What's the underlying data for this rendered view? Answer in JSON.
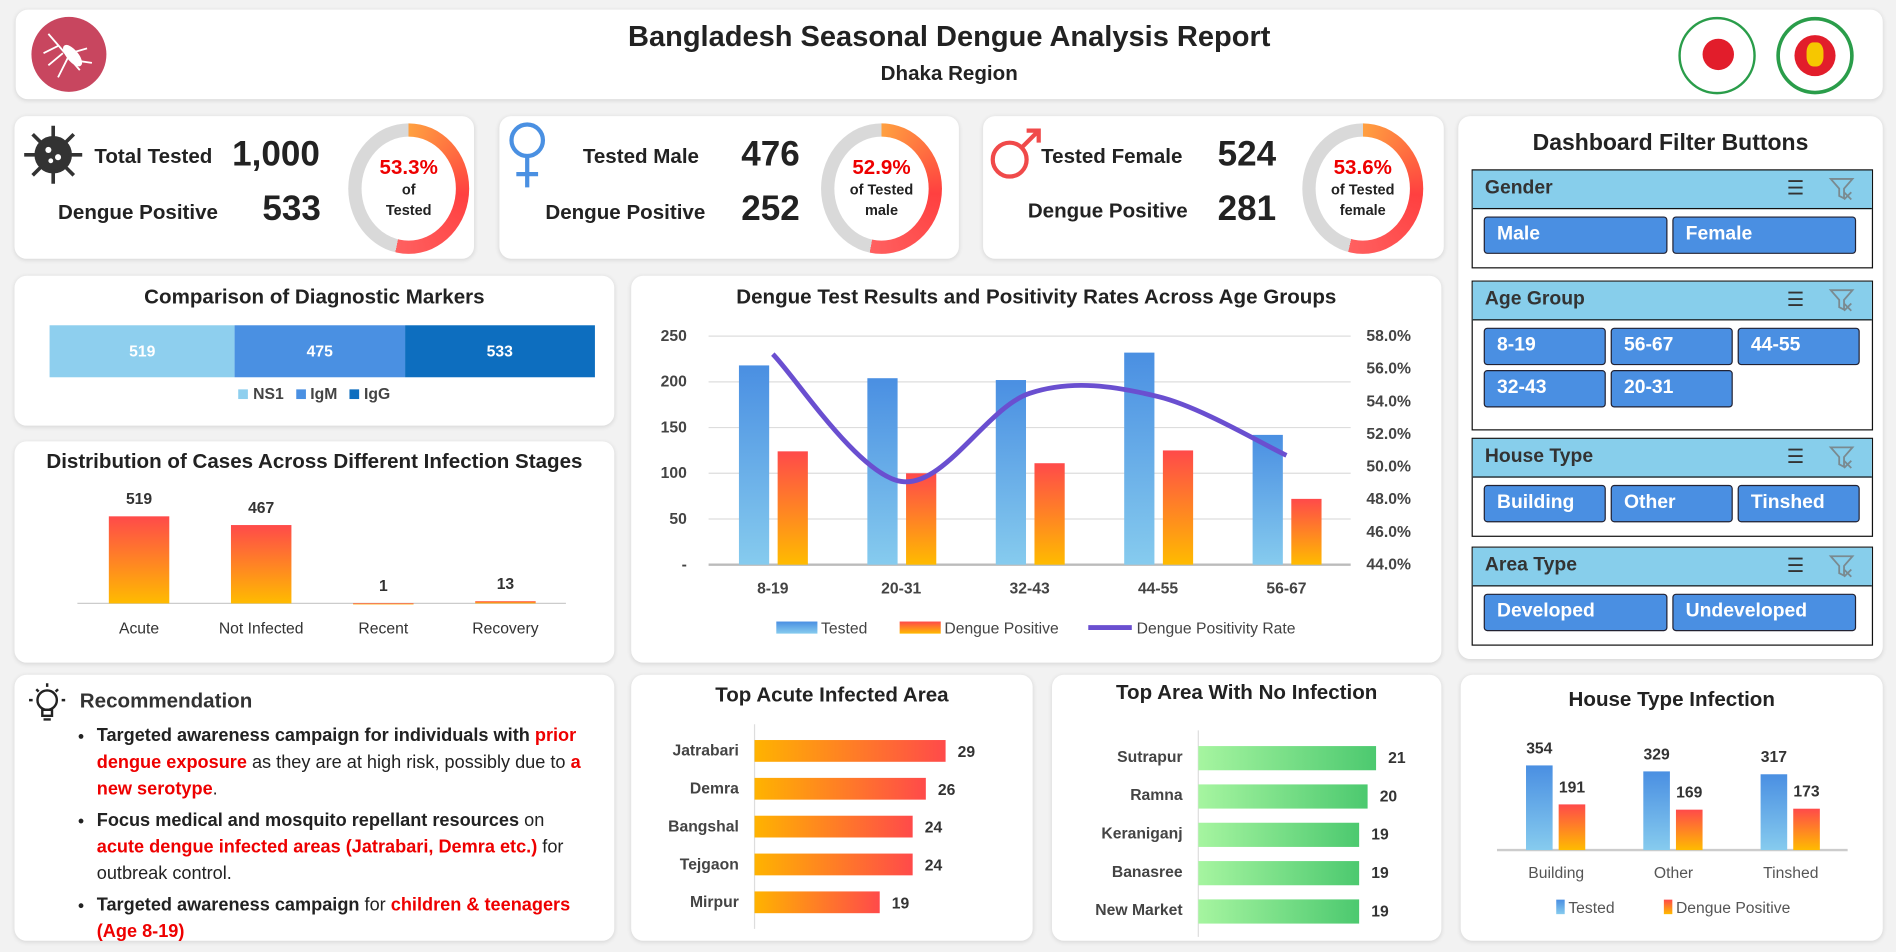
{
  "header": {
    "title": "Bangladesh Seasonal Dengue Analysis Report",
    "subtitle": "Dhaka Region",
    "logo_icon": "mosquito-icon",
    "emblems": [
      "dghs-emblem",
      "government-seal"
    ]
  },
  "kpis": [
    {
      "icon": "virus-icon",
      "label1": "Total Tested",
      "value1": "1,000",
      "label2": "Dengue Positive",
      "value2": "533",
      "pct": "53.3%",
      "pct_value": 53.3,
      "sub1": "of",
      "sub2": "Tested"
    },
    {
      "icon": "female-symbol-icon",
      "label1": "Tested Male",
      "value1": "476",
      "label2": "Dengue Positive",
      "value2": "252",
      "pct": "52.9%",
      "pct_value": 52.9,
      "sub1": "of Tested",
      "sub2": "male"
    },
    {
      "icon": "male-symbol-icon",
      "label1": "Tested Female",
      "value1": "524",
      "label2": "Dengue Positive",
      "value2": "281",
      "pct": "53.6%",
      "pct_value": 53.6,
      "sub1": "of Tested",
      "sub2": "female"
    }
  ],
  "filters": {
    "title": "Dashboard Filter Buttons",
    "groups": [
      {
        "title": "Gender",
        "buttons": [
          "Male",
          "Female"
        ]
      },
      {
        "title": "Age Group",
        "buttons": [
          "8-19",
          "56-67",
          "44-55",
          "32-43",
          "20-31"
        ]
      },
      {
        "title": "House Type",
        "buttons": [
          "Building",
          "Other",
          "Tinshed"
        ]
      },
      {
        "title": "Area Type",
        "buttons": [
          "Developed",
          "Undeveloped"
        ]
      }
    ]
  },
  "recommendation": {
    "title": "Recommendation",
    "items": [
      [
        {
          "t": "Targeted awareness campaign for individuals with ",
          "s": "b"
        },
        {
          "t": "prior dengue exposure",
          "s": "r"
        },
        {
          "t": " as they are at high risk, possibly due to ",
          "s": "n"
        },
        {
          "t": "a new serotype",
          "s": "r"
        },
        {
          "t": ".",
          "s": "n"
        }
      ],
      [
        {
          "t": "Focus medical and mosquito repellant resources",
          "s": "b"
        },
        {
          "t": " on ",
          "s": "n"
        },
        {
          "t": "acute dengue infected areas (Jatrabari, Demra etc.)",
          "s": "r"
        },
        {
          "t": " for outbreak control.",
          "s": "n"
        }
      ],
      [
        {
          "t": "Targeted awareness campaign",
          "s": "b"
        },
        {
          "t": " for ",
          "s": "n"
        },
        {
          "t": "children & teenagers (Age 8-19)",
          "s": "r"
        }
      ]
    ]
  },
  "colors": {
    "blue": "#4a8fe2",
    "red": "#ff4a4a",
    "orange": "#ffb300",
    "line": "#6a4fd0",
    "ns1": "#8ecfee",
    "igm": "#4a90e2",
    "igg": "#0d6ebf",
    "green": "#4cc96f"
  },
  "chart_data": [
    {
      "type": "bar",
      "title": "Comparison of Diagnostic Markers",
      "stacked": true,
      "orientation": "horizontal",
      "series": [
        {
          "name": "NS1",
          "values": [
            519
          ]
        },
        {
          "name": "IgM",
          "values": [
            475
          ]
        },
        {
          "name": "IgG",
          "values": [
            533
          ]
        }
      ],
      "legend": "bottom"
    },
    {
      "type": "bar",
      "title": "Distribution of Cases Across Different Infection Stages",
      "categories": [
        "Acute",
        "Not Infected",
        "Recent",
        "Recovery"
      ],
      "values": [
        519,
        467,
        1,
        13
      ]
    },
    {
      "type": "bar+line",
      "title": "Dengue Test Results and Positivity Rates Across Age Groups",
      "categories": [
        "8-19",
        "20-31",
        "32-43",
        "44-55",
        "56-67"
      ],
      "series": [
        {
          "name": "Tested",
          "values": [
            218,
            204,
            202,
            232,
            142
          ]
        },
        {
          "name": "Dengue Positive",
          "values": [
            124,
            100,
            111,
            125,
            72
          ]
        },
        {
          "name": "Dengue Positivity Rate",
          "axis": "right",
          "values": [
            56.9,
            49.1,
            54.5,
            54.3,
            50.7
          ]
        }
      ],
      "ylim": [
        0,
        250
      ],
      "yticks": [
        "-",
        "50",
        "100",
        "150",
        "200",
        "250"
      ],
      "y2lim": [
        44,
        58
      ],
      "y2ticks": [
        "44.0%",
        "46.0%",
        "48.0%",
        "50.0%",
        "52.0%",
        "54.0%",
        "56.0%",
        "58.0%"
      ],
      "grid": true,
      "legend": "bottom"
    },
    {
      "type": "bar",
      "orientation": "horizontal",
      "title": "Top Acute Infected Area",
      "categories": [
        "Jatrabari",
        "Demra",
        "Bangshal",
        "Tejgaon",
        "Mirpur"
      ],
      "values": [
        29,
        26,
        24,
        24,
        19
      ]
    },
    {
      "type": "bar",
      "orientation": "horizontal",
      "title": "Top Area With No Infection",
      "categories": [
        "Sutrapur",
        "Ramna",
        "Keraniganj",
        "Banasree",
        "New Market"
      ],
      "values": [
        21,
        20,
        19,
        19,
        19
      ]
    },
    {
      "type": "bar",
      "title": "House Type Infection",
      "categories": [
        "Building",
        "Other",
        "Tinshed"
      ],
      "series": [
        {
          "name": "Tested",
          "values": [
            354,
            329,
            317
          ]
        },
        {
          "name": "Dengue Positive",
          "values": [
            191,
            169,
            173
          ]
        }
      ],
      "legend": "bottom"
    }
  ]
}
